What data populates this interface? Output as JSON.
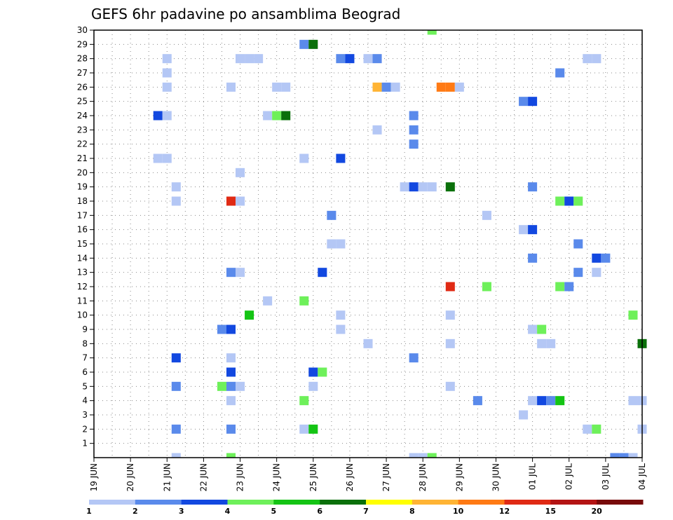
{
  "chart_data": {
    "type": "heatmap",
    "title": "GEFS 6hr padavine po ansamblima Beograd",
    "xlabel": "",
    "ylabel": "",
    "x_ticks": [
      "19 JUN",
      "20 JUN",
      "21 JUN",
      "22 JUN",
      "23 JUN",
      "24 JUN",
      "25 JUN",
      "26 JUN",
      "27 JUN",
      "28 JUN",
      "29 JUN",
      "30 JUN",
      "01 JUL",
      "02 JUL",
      "03 JUL",
      "04 JUL"
    ],
    "x_range_days": [
      0,
      15
    ],
    "y_ticks": [
      1,
      2,
      3,
      4,
      5,
      6,
      7,
      8,
      9,
      10,
      11,
      12,
      13,
      14,
      15,
      16,
      17,
      18,
      19,
      20,
      21,
      22,
      23,
      24,
      25,
      26,
      27,
      28,
      29,
      30
    ],
    "y_range": [
      0,
      30
    ],
    "grid": true,
    "colorbar": {
      "labels": [
        "1",
        "2",
        "3",
        "4",
        "5",
        "6",
        "7",
        "8",
        "10",
        "12",
        "15",
        "20"
      ],
      "colors": [
        "#b4c7f5",
        "#5a8aeb",
        "#1248e0",
        "#6ef05a",
        "#14c414",
        "#0a700a",
        "#ffff00",
        "#ffb434",
        "#ff7a14",
        "#e02a14",
        "#b41414",
        "#780a0a"
      ]
    },
    "cells": [
      {
        "member": 0,
        "time": "21 JUN 06",
        "level": 1
      },
      {
        "member": 0,
        "time": "22 JUN 18",
        "level": 4
      },
      {
        "member": 0,
        "time": "27 JUN 18",
        "level": 1
      },
      {
        "member": 0,
        "time": "28 JUN 00",
        "level": 1
      },
      {
        "member": 0,
        "time": "28 JUN 06",
        "level": 4
      },
      {
        "member": 0,
        "time": "03 JUL 06",
        "level": 2
      },
      {
        "member": 0,
        "time": "03 JUL 12",
        "level": 2
      },
      {
        "member": 0,
        "time": "03 JUL 18",
        "level": 1
      },
      {
        "member": 2,
        "time": "21 JUN 06",
        "level": 2
      },
      {
        "member": 2,
        "time": "22 JUN 18",
        "level": 2
      },
      {
        "member": 2,
        "time": "24 JUN 18",
        "level": 1
      },
      {
        "member": 2,
        "time": "25 JUN 00",
        "level": 5
      },
      {
        "member": 2,
        "time": "02 JUL 12",
        "level": 1
      },
      {
        "member": 2,
        "time": "02 JUL 18",
        "level": 4
      },
      {
        "member": 2,
        "time": "04 JUL 00",
        "level": 1
      },
      {
        "member": 3,
        "time": "30 JUN 18",
        "level": 1
      },
      {
        "member": 4,
        "time": "22 JUN 18",
        "level": 1
      },
      {
        "member": 4,
        "time": "24 JUN 18",
        "level": 4
      },
      {
        "member": 4,
        "time": "29 JUN 12",
        "level": 2
      },
      {
        "member": 4,
        "time": "01 JUL 00",
        "level": 1
      },
      {
        "member": 4,
        "time": "01 JUL 06",
        "level": 3
      },
      {
        "member": 4,
        "time": "01 JUL 12",
        "level": 2
      },
      {
        "member": 4,
        "time": "01 JUL 18",
        "level": 5
      },
      {
        "member": 4,
        "time": "03 JUL 18",
        "level": 1
      },
      {
        "member": 4,
        "time": "04 JUL 00",
        "level": 1
      },
      {
        "member": 5,
        "time": "21 JUN 06",
        "level": 2
      },
      {
        "member": 5,
        "time": "22 JUN 12",
        "level": 4
      },
      {
        "member": 5,
        "time": "22 JUN 18",
        "level": 2
      },
      {
        "member": 5,
        "time": "23 JUN 00",
        "level": 1
      },
      {
        "member": 5,
        "time": "25 JUN 00",
        "level": 1
      },
      {
        "member": 5,
        "time": "28 JUN 18",
        "level": 1
      },
      {
        "member": 6,
        "time": "22 JUN 18",
        "level": 3
      },
      {
        "member": 6,
        "time": "25 JUN 00",
        "level": 3
      },
      {
        "member": 6,
        "time": "25 JUN 06",
        "level": 4
      },
      {
        "member": 7,
        "time": "21 JUN 06",
        "level": 3
      },
      {
        "member": 7,
        "time": "22 JUN 18",
        "level": 1
      },
      {
        "member": 7,
        "time": "27 JUN 18",
        "level": 2
      },
      {
        "member": 8,
        "time": "26 JUN 12",
        "level": 1
      },
      {
        "member": 8,
        "time": "28 JUN 18",
        "level": 1
      },
      {
        "member": 8,
        "time": "01 JUL 06",
        "level": 1
      },
      {
        "member": 8,
        "time": "01 JUL 12",
        "level": 1
      },
      {
        "member": 8,
        "time": "04 JUL 00",
        "level": 6
      },
      {
        "member": 9,
        "time": "22 JUN 12",
        "level": 2
      },
      {
        "member": 9,
        "time": "22 JUN 18",
        "level": 3
      },
      {
        "member": 9,
        "time": "25 JUN 18",
        "level": 1
      },
      {
        "member": 9,
        "time": "01 JUL 00",
        "level": 1
      },
      {
        "member": 9,
        "time": "01 JUL 06",
        "level": 4
      },
      {
        "member": 10,
        "time": "23 JUN 06",
        "level": 5
      },
      {
        "member": 10,
        "time": "25 JUN 18",
        "level": 1
      },
      {
        "member": 10,
        "time": "28 JUN 18",
        "level": 1
      },
      {
        "member": 10,
        "time": "03 JUL 18",
        "level": 4
      },
      {
        "member": 11,
        "time": "23 JUN 18",
        "level": 1
      },
      {
        "member": 11,
        "time": "24 JUN 18",
        "level": 4
      },
      {
        "member": 12,
        "time": "28 JUN 18",
        "level": 12
      },
      {
        "member": 12,
        "time": "29 JUN 18",
        "level": 4
      },
      {
        "member": 12,
        "time": "01 JUL 18",
        "level": 4
      },
      {
        "member": 12,
        "time": "02 JUL 00",
        "level": 2
      },
      {
        "member": 13,
        "time": "22 JUN 18",
        "level": 2
      },
      {
        "member": 13,
        "time": "23 JUN 00",
        "level": 1
      },
      {
        "member": 13,
        "time": "25 JUN 06",
        "level": 3
      },
      {
        "member": 13,
        "time": "02 JUL 06",
        "level": 2
      },
      {
        "member": 13,
        "time": "02 JUL 18",
        "level": 1
      },
      {
        "member": 14,
        "time": "01 JUL 00",
        "level": 2
      },
      {
        "member": 14,
        "time": "02 JUL 18",
        "level": 3
      },
      {
        "member": 14,
        "time": "03 JUL 00",
        "level": 2
      },
      {
        "member": 15,
        "time": "25 JUN 12",
        "level": 1
      },
      {
        "member": 15,
        "time": "25 JUN 18",
        "level": 1
      },
      {
        "member": 15,
        "time": "02 JUL 06",
        "level": 2
      },
      {
        "member": 16,
        "time": "30 JUN 18",
        "level": 1
      },
      {
        "member": 16,
        "time": "01 JUL 00",
        "level": 3
      },
      {
        "member": 17,
        "time": "25 JUN 12",
        "level": 2
      },
      {
        "member": 17,
        "time": "29 JUN 18",
        "level": 1
      },
      {
        "member": 18,
        "time": "22 JUN 18",
        "level": 12
      },
      {
        "member": 18,
        "time": "23 JUN 00",
        "level": 1
      },
      {
        "member": 18,
        "time": "01 JUL 18",
        "level": 4
      },
      {
        "member": 18,
        "time": "02 JUL 00",
        "level": 3
      },
      {
        "member": 18,
        "time": "02 JUL 06",
        "level": 4
      },
      {
        "member": 18,
        "time": "21 JUN 06",
        "level": 1
      },
      {
        "member": 19,
        "time": "21 JUN 06",
        "level": 1
      },
      {
        "member": 19,
        "time": "27 JUN 12",
        "level": 1
      },
      {
        "member": 19,
        "time": "27 JUN 18",
        "level": 3
      },
      {
        "member": 19,
        "time": "28 JUN 00",
        "level": 1
      },
      {
        "member": 19,
        "time": "28 JUN 06",
        "level": 1
      },
      {
        "member": 19,
        "time": "28 JUN 18",
        "level": 6
      },
      {
        "member": 19,
        "time": "01 JUL 00",
        "level": 2
      },
      {
        "member": 20,
        "time": "23 JUN 00",
        "level": 1
      },
      {
        "member": 21,
        "time": "20 JUN 18",
        "level": 1
      },
      {
        "member": 21,
        "time": "21 JUN 00",
        "level": 1
      },
      {
        "member": 21,
        "time": "24 JUN 18",
        "level": 1
      },
      {
        "member": 21,
        "time": "25 JUN 18",
        "level": 3
      },
      {
        "member": 22,
        "time": "27 JUN 18",
        "level": 2
      },
      {
        "member": 23,
        "time": "27 JUN 18",
        "level": 2
      },
      {
        "member": 23,
        "time": "26 JUN 18",
        "level": 1
      },
      {
        "member": 24,
        "time": "20 JUN 18",
        "level": 3
      },
      {
        "member": 24,
        "time": "21 JUN 00",
        "level": 1
      },
      {
        "member": 24,
        "time": "23 JUN 18",
        "level": 1
      },
      {
        "member": 24,
        "time": "24 JUN 00",
        "level": 4
      },
      {
        "member": 24,
        "time": "24 JUN 06",
        "level": 6
      },
      {
        "member": 24,
        "time": "27 JUN 18",
        "level": 2
      },
      {
        "member": 25,
        "time": "30 JUN 18",
        "level": 2
      },
      {
        "member": 25,
        "time": "01 JUL 00",
        "level": 3
      },
      {
        "member": 26,
        "time": "21 JUN 00",
        "level": 1
      },
      {
        "member": 26,
        "time": "22 JUN 18",
        "level": 1
      },
      {
        "member": 26,
        "time": "24 JUN 00",
        "level": 1
      },
      {
        "member": 26,
        "time": "24 JUN 06",
        "level": 1
      },
      {
        "member": 26,
        "time": "26 JUN 18",
        "level": 8
      },
      {
        "member": 26,
        "time": "27 JUN 00",
        "level": 2
      },
      {
        "member": 26,
        "time": "27 JUN 06",
        "level": 1
      },
      {
        "member": 26,
        "time": "28 JUN 12",
        "level": 10
      },
      {
        "member": 26,
        "time": "28 JUN 18",
        "level": 10
      },
      {
        "member": 26,
        "time": "29 JUN 00",
        "level": 1
      },
      {
        "member": 27,
        "time": "21 JUN 00",
        "level": 1
      },
      {
        "member": 27,
        "time": "01 JUL 18",
        "level": 2
      },
      {
        "member": 28,
        "time": "21 JUN 00",
        "level": 1
      },
      {
        "member": 28,
        "time": "23 JUN 00",
        "level": 1
      },
      {
        "member": 28,
        "time": "23 JUN 06",
        "level": 1
      },
      {
        "member": 28,
        "time": "23 JUN 12",
        "level": 1
      },
      {
        "member": 28,
        "time": "25 JUN 18",
        "level": 2
      },
      {
        "member": 28,
        "time": "26 JUN 00",
        "level": 3
      },
      {
        "member": 28,
        "time": "26 JUN 12",
        "level": 1
      },
      {
        "member": 28,
        "time": "26 JUN 18",
        "level": 2
      },
      {
        "member": 28,
        "time": "02 JUL 12",
        "level": 1
      },
      {
        "member": 28,
        "time": "02 JUL 18",
        "level": 1
      },
      {
        "member": 29,
        "time": "24 JUN 18",
        "level": 2
      },
      {
        "member": 29,
        "time": "25 JUN 00",
        "level": 6
      },
      {
        "member": 30,
        "time": "28 JUN 06",
        "level": 4
      }
    ]
  }
}
